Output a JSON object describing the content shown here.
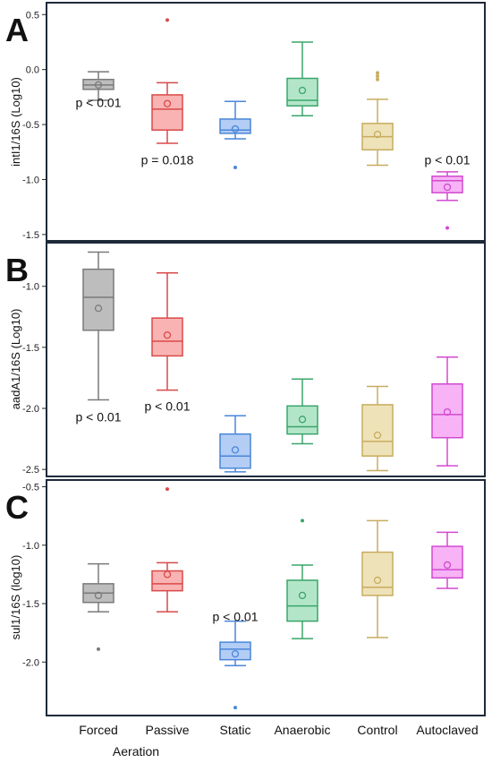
{
  "x_categories": [
    "Forced",
    "Passive",
    "Static",
    "Anaerobic",
    "Control",
    "Autoclaved"
  ],
  "x_title": "Aeration",
  "colors": {
    "Forced": {
      "fill": "#bdbdbd",
      "stroke": "#7a7a7a"
    },
    "Passive": {
      "fill": "#f9b3b3",
      "stroke": "#d94a4a"
    },
    "Static": {
      "fill": "#b3cdf5",
      "stroke": "#4a86d9"
    },
    "Anaerobic": {
      "fill": "#b3e6c9",
      "stroke": "#3aa56a"
    },
    "Control": {
      "fill": "#eee2b8",
      "stroke": "#c8ac5e"
    },
    "Autoclaved": {
      "fill": "#f7b3f5",
      "stroke": "#d24ad0"
    }
  },
  "chart_data": [
    {
      "type": "box",
      "panel_label": "A",
      "ylabel": "intI1/16S (Log10)",
      "ylim": [
        -1.55,
        0.6
      ],
      "yticks": [
        -1.5,
        -1.0,
        -0.5,
        0.0,
        0.5
      ],
      "yticklabels": [
        "-1.5",
        "-1.0",
        "-0.5",
        "0.0",
        "0.5"
      ],
      "categories": [
        "Forced",
        "Passive",
        "Static",
        "Anaerobic",
        "Control",
        "Autoclaved"
      ],
      "boxes": [
        {
          "category": "Forced",
          "whisker_low": -0.28,
          "q1": -0.18,
          "median": -0.14,
          "q3": -0.09,
          "whisker_high": -0.02,
          "mean": -0.14,
          "outliers": []
        },
        {
          "category": "Passive",
          "whisker_low": -0.67,
          "q1": -0.55,
          "median": -0.36,
          "q3": -0.23,
          "whisker_high": -0.12,
          "mean": -0.31,
          "outliers": [
            0.45
          ]
        },
        {
          "category": "Static",
          "whisker_low": -0.63,
          "q1": -0.58,
          "median": -0.55,
          "q3": -0.45,
          "whisker_high": -0.29,
          "mean": -0.54,
          "outliers": [
            -0.89
          ]
        },
        {
          "category": "Anaerobic",
          "whisker_low": -0.42,
          "q1": -0.33,
          "median": -0.28,
          "q3": -0.08,
          "whisker_high": 0.25,
          "mean": -0.19,
          "outliers": []
        },
        {
          "category": "Control",
          "whisker_low": -0.87,
          "q1": -0.73,
          "median": -0.61,
          "q3": -0.49,
          "whisker_high": -0.27,
          "mean": -0.59,
          "outliers": [
            -0.03,
            -0.06,
            -0.09
          ]
        },
        {
          "category": "Autoclaved",
          "whisker_low": -1.19,
          "q1": -1.12,
          "median": -1.01,
          "q3": -0.97,
          "whisker_high": -0.93,
          "mean": -1.07,
          "outliers": [
            -1.44
          ]
        }
      ],
      "annotations": [
        {
          "text": "p < 0.01",
          "category": "Forced",
          "y": -0.3
        },
        {
          "text": "p = 0.018",
          "category": "Passive",
          "y": -0.82
        },
        {
          "text": "p < 0.01",
          "category": "Autoclaved",
          "y": -0.82
        }
      ]
    },
    {
      "type": "box",
      "panel_label": "B",
      "ylabel": "aadA1/16S (Log10)",
      "ylim": [
        -2.55,
        -0.65
      ],
      "yticks": [
        -2.5,
        -2.0,
        -1.5,
        -1.0
      ],
      "yticklabels": [
        "-2.5",
        "-2.0",
        "-1.5",
        "-1.0"
      ],
      "categories": [
        "Forced",
        "Passive",
        "Static",
        "Anaerobic",
        "Control",
        "Autoclaved"
      ],
      "boxes": [
        {
          "category": "Forced",
          "whisker_low": -1.93,
          "q1": -1.36,
          "median": -1.09,
          "q3": -0.86,
          "whisker_high": -0.72,
          "mean": -1.18,
          "outliers": []
        },
        {
          "category": "Passive",
          "whisker_low": -1.85,
          "q1": -1.57,
          "median": -1.45,
          "q3": -1.26,
          "whisker_high": -0.89,
          "mean": -1.4,
          "outliers": []
        },
        {
          "category": "Static",
          "whisker_low": -2.52,
          "q1": -2.49,
          "median": -2.39,
          "q3": -2.21,
          "whisker_high": -2.06,
          "mean": -2.34,
          "outliers": []
        },
        {
          "category": "Anaerobic",
          "whisker_low": -2.29,
          "q1": -2.21,
          "median": -2.15,
          "q3": -1.98,
          "whisker_high": -1.76,
          "mean": -2.09,
          "outliers": []
        },
        {
          "category": "Control",
          "whisker_low": -2.51,
          "q1": -2.39,
          "median": -2.27,
          "q3": -1.97,
          "whisker_high": -1.82,
          "mean": -2.22,
          "outliers": []
        },
        {
          "category": "Autoclaved",
          "whisker_low": -2.47,
          "q1": -2.24,
          "median": -2.05,
          "q3": -1.8,
          "whisker_high": -1.58,
          "mean": -2.03,
          "outliers": []
        }
      ],
      "annotations": [
        {
          "text": "p < 0.01",
          "category": "Forced",
          "y": -2.07
        },
        {
          "text": "p < 0.01",
          "category": "Passive",
          "y": -1.98
        }
      ]
    },
    {
      "type": "box",
      "panel_label": "C",
      "ylabel": "sul1/16S (log10)",
      "ylim": [
        -2.45,
        -0.45
      ],
      "yticks": [
        -2.0,
        -1.5,
        -1.0,
        -0.5
      ],
      "yticklabels": [
        "-2.0",
        "-1.5",
        "-1.0",
        "-0.5"
      ],
      "categories": [
        "Forced",
        "Passive",
        "Static",
        "Anaerobic",
        "Control",
        "Autoclaved"
      ],
      "boxes": [
        {
          "category": "Forced",
          "whisker_low": -1.57,
          "q1": -1.49,
          "median": -1.41,
          "q3": -1.33,
          "whisker_high": -1.16,
          "mean": -1.43,
          "outliers": [
            -1.89
          ]
        },
        {
          "category": "Passive",
          "whisker_low": -1.57,
          "q1": -1.39,
          "median": -1.33,
          "q3": -1.22,
          "whisker_high": -1.15,
          "mean": -1.25,
          "outliers": [
            -0.52
          ]
        },
        {
          "category": "Static",
          "whisker_low": -2.03,
          "q1": -1.98,
          "median": -1.89,
          "q3": -1.83,
          "whisker_high": -1.65,
          "mean": -1.93,
          "outliers": [
            -2.39
          ]
        },
        {
          "category": "Anaerobic",
          "whisker_low": -1.8,
          "q1": -1.65,
          "median": -1.52,
          "q3": -1.3,
          "whisker_high": -1.17,
          "mean": -1.43,
          "outliers": [
            -0.79
          ]
        },
        {
          "category": "Control",
          "whisker_low": -1.79,
          "q1": -1.43,
          "median": -1.36,
          "q3": -1.06,
          "whisker_high": -0.79,
          "mean": -1.3,
          "outliers": []
        },
        {
          "category": "Autoclaved",
          "whisker_low": -1.37,
          "q1": -1.28,
          "median": -1.21,
          "q3": -1.01,
          "whisker_high": -0.89,
          "mean": -1.17,
          "outliers": []
        }
      ],
      "annotations": [
        {
          "text": "p < 0.01",
          "category": "Static",
          "y": -1.61
        }
      ]
    }
  ]
}
